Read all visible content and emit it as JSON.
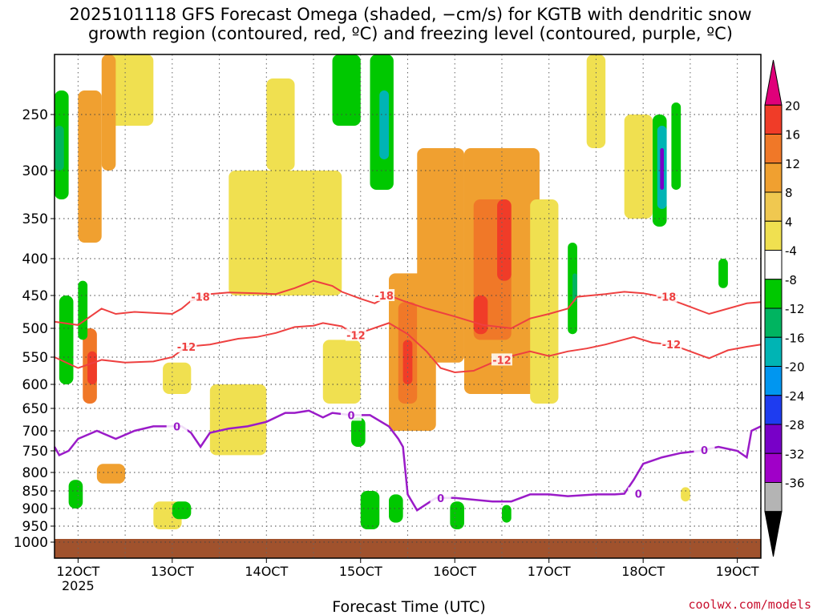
{
  "chart_data": {
    "type": "time-height",
    "title_line1": "2025101118 GFS Forecast Omega (shaded, −cm/s) for KGTB with dendritic snow",
    "title_line2": "growth region (contoured, red, ºC) and freezing level (contoured, purple, ºC)",
    "xlabel": "Forecast Time (UTC)",
    "year_label": "2025",
    "x_ticks": [
      {
        "day": 12,
        "label": "12OCT"
      },
      {
        "day": 13,
        "label": "13OCT"
      },
      {
        "day": 14,
        "label": "14OCT"
      },
      {
        "day": 15,
        "label": "15OCT"
      },
      {
        "day": 16,
        "label": "16OCT"
      },
      {
        "day": 17,
        "label": "17OCT"
      },
      {
        "day": 18,
        "label": "18OCT"
      },
      {
        "day": 19,
        "label": "19OCT"
      }
    ],
    "x_range": [
      11.75,
      19.25
    ],
    "y_ticks": [
      250,
      300,
      350,
      400,
      450,
      500,
      550,
      600,
      650,
      700,
      750,
      800,
      850,
      900,
      950,
      1000
    ],
    "y_range_hpa": [
      200,
      1000
    ],
    "surface_color": "#a0522d",
    "colorbar": {
      "levels": [
        20,
        16,
        12,
        8,
        4,
        -4,
        -8,
        -12,
        -16,
        -20,
        -24,
        -28,
        -32,
        -36
      ],
      "colors": [
        "#e0007a",
        "#f03c28",
        "#f07828",
        "#f0a030",
        "#f0c850",
        "#f0e050",
        "#ffffff",
        "#00c800",
        "#00b460",
        "#00b4b4",
        "#0096f0",
        "#1e3cf0",
        "#7800c8",
        "#a000c8",
        "#b4b4b4",
        "#000000"
      ]
    },
    "contour_labels": {
      "dgz_top": "-18",
      "dgz_bottom": "-12",
      "freezing": "0"
    },
    "dgz_top_hpa": [
      [
        11.75,
        490
      ],
      [
        12.0,
        495
      ],
      [
        12.25,
        470
      ],
      [
        12.4,
        478
      ],
      [
        12.6,
        475
      ],
      [
        13.0,
        478
      ],
      [
        13.1,
        470
      ],
      [
        13.2,
        458
      ],
      [
        13.4,
        448
      ],
      [
        13.6,
        446
      ],
      [
        13.9,
        447
      ],
      [
        14.1,
        448
      ],
      [
        14.3,
        440
      ],
      [
        14.5,
        430
      ],
      [
        14.7,
        437
      ],
      [
        14.8,
        445
      ],
      [
        15.0,
        455
      ],
      [
        15.15,
        462
      ],
      [
        15.3,
        450
      ],
      [
        15.45,
        458
      ],
      [
        15.7,
        470
      ],
      [
        16.0,
        482
      ],
      [
        16.3,
        495
      ],
      [
        16.6,
        500
      ],
      [
        16.8,
        485
      ],
      [
        17.0,
        478
      ],
      [
        17.2,
        470
      ],
      [
        17.3,
        452
      ],
      [
        17.6,
        448
      ],
      [
        17.8,
        445
      ],
      [
        18.0,
        447
      ],
      [
        18.2,
        452
      ],
      [
        18.4,
        462
      ],
      [
        18.7,
        478
      ],
      [
        18.9,
        470
      ],
      [
        19.1,
        462
      ],
      [
        19.25,
        460
      ]
    ],
    "dgz_bottom_hpa": [
      [
        11.75,
        550
      ],
      [
        12.0,
        570
      ],
      [
        12.25,
        555
      ],
      [
        12.5,
        560
      ],
      [
        12.8,
        558
      ],
      [
        13.0,
        550
      ],
      [
        13.15,
        532
      ],
      [
        13.4,
        528
      ],
      [
        13.7,
        518
      ],
      [
        13.9,
        515
      ],
      [
        14.1,
        508
      ],
      [
        14.3,
        498
      ],
      [
        14.5,
        496
      ],
      [
        14.6,
        492
      ],
      [
        14.8,
        497
      ],
      [
        14.95,
        512
      ],
      [
        15.05,
        505
      ],
      [
        15.3,
        492
      ],
      [
        15.5,
        510
      ],
      [
        15.7,
        540
      ],
      [
        15.85,
        570
      ],
      [
        16.0,
        578
      ],
      [
        16.2,
        575
      ],
      [
        16.4,
        560
      ],
      [
        16.6,
        548
      ],
      [
        16.8,
        540
      ],
      [
        17.0,
        548
      ],
      [
        17.2,
        540
      ],
      [
        17.4,
        535
      ],
      [
        17.6,
        528
      ],
      [
        17.9,
        515
      ],
      [
        18.1,
        525
      ],
      [
        18.3,
        528
      ],
      [
        18.5,
        540
      ],
      [
        18.7,
        552
      ],
      [
        18.9,
        538
      ],
      [
        19.1,
        532
      ],
      [
        19.25,
        528
      ]
    ],
    "freezing_hpa": [
      [
        11.75,
        740
      ],
      [
        11.8,
        760
      ],
      [
        11.9,
        750
      ],
      [
        12.0,
        720
      ],
      [
        12.2,
        700
      ],
      [
        12.4,
        720
      ],
      [
        12.6,
        700
      ],
      [
        12.8,
        690
      ],
      [
        13.0,
        690
      ],
      [
        13.1,
        690
      ],
      [
        13.2,
        705
      ],
      [
        13.3,
        740
      ],
      [
        13.4,
        705
      ],
      [
        13.6,
        695
      ],
      [
        13.8,
        690
      ],
      [
        14.0,
        680
      ],
      [
        14.2,
        660
      ],
      [
        14.3,
        660
      ],
      [
        14.45,
        655
      ],
      [
        14.6,
        670
      ],
      [
        14.7,
        660
      ],
      [
        14.9,
        665
      ],
      [
        15.1,
        665
      ],
      [
        15.3,
        690
      ],
      [
        15.4,
        720
      ],
      [
        15.45,
        740
      ],
      [
        15.5,
        860
      ],
      [
        15.6,
        905
      ],
      [
        15.8,
        870
      ],
      [
        16.0,
        870
      ],
      [
        16.2,
        875
      ],
      [
        16.4,
        880
      ],
      [
        16.6,
        880
      ],
      [
        16.8,
        860
      ],
      [
        17.0,
        860
      ],
      [
        17.2,
        865
      ],
      [
        17.5,
        860
      ],
      [
        17.7,
        860
      ],
      [
        17.8,
        858
      ],
      [
        17.9,
        820
      ],
      [
        18.0,
        780
      ],
      [
        18.2,
        765
      ],
      [
        18.4,
        755
      ],
      [
        18.6,
        750
      ],
      [
        18.8,
        740
      ],
      [
        19.0,
        750
      ],
      [
        19.1,
        765
      ],
      [
        19.15,
        700
      ],
      [
        19.25,
        690
      ]
    ],
    "omega_regions": [
      {
        "t0": 12.0,
        "t1": 12.25,
        "p0": 230,
        "p1": 380,
        "v": 8
      },
      {
        "t0": 12.05,
        "t1": 12.2,
        "p0": 500,
        "p1": 640,
        "v": 12
      },
      {
        "t0": 12.1,
        "t1": 12.2,
        "p0": 540,
        "p1": 600,
        "v": 16
      },
      {
        "t0": 12.3,
        "t1": 12.8,
        "p0": 200,
        "p1": 260,
        "v": 4
      },
      {
        "t0": 12.25,
        "t1": 12.4,
        "p0": 200,
        "p1": 300,
        "v": 8
      },
      {
        "t0": 11.75,
        "t1": 11.9,
        "p0": 230,
        "p1": 330,
        "v": -8
      },
      {
        "t0": 11.75,
        "t1": 11.85,
        "p0": 260,
        "p1": 300,
        "v": -12
      },
      {
        "t0": 11.8,
        "t1": 11.95,
        "p0": 450,
        "p1": 600,
        "v": -8
      },
      {
        "t0": 12.0,
        "t1": 12.1,
        "p0": 430,
        "p1": 520,
        "v": -8
      },
      {
        "t0": 11.9,
        "t1": 12.05,
        "p0": 820,
        "p1": 900,
        "v": -8
      },
      {
        "t0": 12.9,
        "t1": 13.2,
        "p0": 560,
        "p1": 620,
        "v": 4
      },
      {
        "t0": 12.8,
        "t1": 13.1,
        "p0": 880,
        "p1": 960,
        "v": 4
      },
      {
        "t0": 13.0,
        "t1": 13.2,
        "p0": 880,
        "p1": 930,
        "v": -8
      },
      {
        "t0": 12.2,
        "t1": 12.5,
        "p0": 780,
        "p1": 830,
        "v": 8
      },
      {
        "t0": 13.4,
        "t1": 14.0,
        "p0": 600,
        "p1": 760,
        "v": 4
      },
      {
        "t0": 13.6,
        "t1": 14.8,
        "p0": 300,
        "p1": 450,
        "v": 4
      },
      {
        "t0": 14.0,
        "t1": 14.3,
        "p0": 220,
        "p1": 300,
        "v": 4
      },
      {
        "t0": 14.7,
        "t1": 15.0,
        "p0": 180,
        "p1": 260,
        "v": -8
      },
      {
        "t0": 15.1,
        "t1": 15.35,
        "p0": 200,
        "p1": 320,
        "v": -8
      },
      {
        "t0": 15.2,
        "t1": 15.3,
        "p0": 230,
        "p1": 290,
        "v": -16
      },
      {
        "t0": 15.3,
        "t1": 15.8,
        "p0": 420,
        "p1": 700,
        "v": 8
      },
      {
        "t0": 15.4,
        "t1": 15.6,
        "p0": 460,
        "p1": 640,
        "v": 12
      },
      {
        "t0": 15.45,
        "t1": 15.55,
        "p0": 520,
        "p1": 600,
        "v": 16
      },
      {
        "t0": 15.6,
        "t1": 16.1,
        "p0": 280,
        "p1": 560,
        "v": 8
      },
      {
        "t0": 16.1,
        "t1": 16.9,
        "p0": 280,
        "p1": 620,
        "v": 8
      },
      {
        "t0": 16.2,
        "t1": 16.6,
        "p0": 330,
        "p1": 520,
        "v": 12
      },
      {
        "t0": 16.45,
        "t1": 16.6,
        "p0": 330,
        "p1": 430,
        "v": 16
      },
      {
        "t0": 16.2,
        "t1": 16.35,
        "p0": 450,
        "p1": 510,
        "v": 16
      },
      {
        "t0": 16.8,
        "t1": 17.1,
        "p0": 330,
        "p1": 640,
        "v": 4
      },
      {
        "t0": 17.2,
        "t1": 17.3,
        "p0": 380,
        "p1": 510,
        "v": -8
      },
      {
        "t0": 17.25,
        "t1": 17.3,
        "p0": 420,
        "p1": 460,
        "v": -12
      },
      {
        "t0": 18.1,
        "t1": 18.25,
        "p0": 250,
        "p1": 360,
        "v": -8
      },
      {
        "t0": 18.15,
        "t1": 18.25,
        "p0": 260,
        "p1": 340,
        "v": -16
      },
      {
        "t0": 18.18,
        "t1": 18.22,
        "p0": 280,
        "p1": 320,
        "v": -28
      },
      {
        "t0": 18.3,
        "t1": 18.4,
        "p0": 240,
        "p1": 320,
        "v": -8
      },
      {
        "t0": 17.4,
        "t1": 17.6,
        "p0": 200,
        "p1": 280,
        "v": 4
      },
      {
        "t0": 17.8,
        "t1": 18.1,
        "p0": 250,
        "p1": 350,
        "v": 4
      },
      {
        "t0": 15.0,
        "t1": 15.2,
        "p0": 850,
        "p1": 960,
        "v": -8
      },
      {
        "t0": 15.3,
        "t1": 15.45,
        "p0": 860,
        "p1": 940,
        "v": -8
      },
      {
        "t0": 15.95,
        "t1": 16.1,
        "p0": 880,
        "p1": 960,
        "v": -8
      },
      {
        "t0": 16.5,
        "t1": 16.6,
        "p0": 890,
        "p1": 940,
        "v": -8
      },
      {
        "t0": 18.8,
        "t1": 18.9,
        "p0": 400,
        "p1": 440,
        "v": -8
      },
      {
        "t0": 18.4,
        "t1": 18.5,
        "p0": 840,
        "p1": 880,
        "v": 4
      },
      {
        "t0": 14.6,
        "t1": 15.0,
        "p0": 520,
        "p1": 640,
        "v": 4
      },
      {
        "t0": 14.9,
        "t1": 15.05,
        "p0": 670,
        "p1": 740,
        "v": -8
      }
    ]
  },
  "credit": "coolwx.com/models"
}
